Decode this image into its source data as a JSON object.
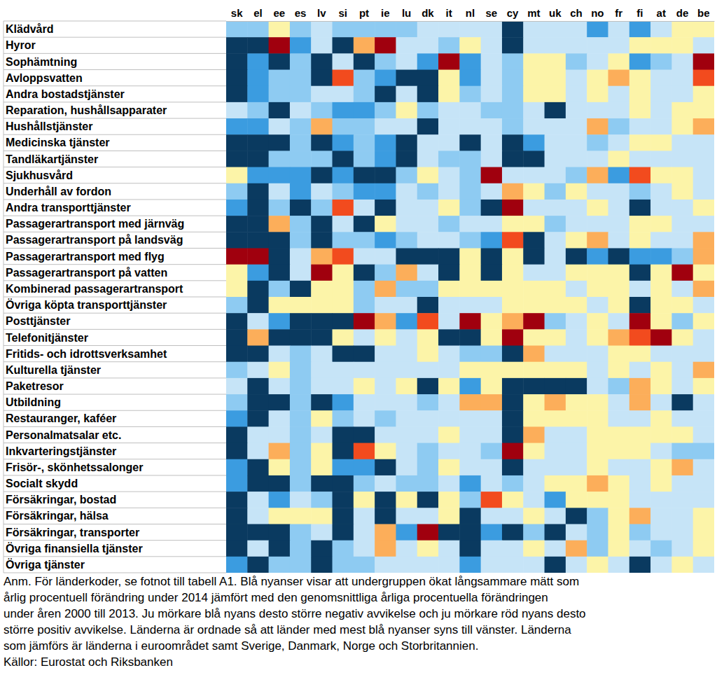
{
  "chart_data": {
    "type": "heatmap",
    "x": [
      "sk",
      "el",
      "ee",
      "es",
      "lv",
      "si",
      "pt",
      "ie",
      "lu",
      "dk",
      "it",
      "nl",
      "se",
      "cy",
      "mt",
      "uk",
      "ch",
      "no",
      "fr",
      "fi",
      "at",
      "de",
      "be"
    ],
    "y": [
      "Klädvård",
      "Hyror",
      "Sophämtning",
      "Avloppsvatten",
      "Andra bostadstjänster",
      "Reparation, hushållsapparater",
      "Hushållstjänster",
      "Medicinska tjänster",
      "Tandläkartjänster",
      "Sjukhusvård",
      "Underhåll av fordon",
      "Andra transporttjänster",
      "Passagerartransport med järnväg",
      "Passagerartransport på landsväg",
      "Passagerartransport med flyg",
      "Passagerartransport på vatten",
      "Kombinerad passagerartransport",
      "Övriga köpta transporttjänster",
      "Posttjänster",
      "Telefonitjänster",
      "Fritids- och idrottsverksamhet",
      "Kulturella tjänster",
      "Paketresor",
      "Utbildning",
      "Restauranger, kaféer",
      "Personalmatsalar etc.",
      "Inkvarteringstjänster",
      "Frisör-, skönhetssalonger",
      "Socialt skydd",
      "Försäkringar, bostad",
      "Försäkringar, hälsa",
      "Försäkringar, transporter",
      "Övriga finansiella tjänster",
      "Övriga tjänster"
    ],
    "cells": [
      [
        -2,
        -2,
        1,
        -2,
        -1,
        -2,
        -2,
        -2,
        -2,
        -1,
        -1,
        -1,
        -1,
        -4,
        -1,
        -1,
        -1,
        -3,
        -1,
        -3,
        -1,
        1,
        1
      ],
      [
        -4,
        -4,
        4,
        -3,
        -1,
        -4,
        2,
        4,
        -1,
        -1,
        -2,
        1,
        -1,
        -4,
        -1,
        -1,
        -1,
        -1,
        -1,
        1,
        1,
        1,
        -1
      ],
      [
        -4,
        -3,
        -4,
        -2,
        -4,
        -1,
        -4,
        -2,
        -1,
        -3,
        4,
        -3,
        -1,
        -2,
        1,
        1,
        -2,
        -1,
        1,
        -3,
        -2,
        -1,
        4
      ],
      [
        -4,
        -3,
        -2,
        -2,
        -4,
        3,
        -2,
        -3,
        -4,
        -4,
        1,
        -3,
        -1,
        -2,
        1,
        1,
        -1,
        1,
        2,
        1,
        -1,
        -1,
        3
      ],
      [
        -4,
        -3,
        -2,
        -2,
        -1,
        -1,
        -2,
        -4,
        -1,
        -4,
        1,
        -2,
        -1,
        -2,
        1,
        1,
        -1,
        1,
        -1,
        1,
        -1,
        -1,
        1
      ],
      [
        -1,
        -2,
        -4,
        -1,
        -2,
        -3,
        -3,
        -2,
        1,
        -2,
        -1,
        -1,
        -2,
        -2,
        -1,
        -4,
        -1,
        -1,
        -1,
        1,
        -1,
        1,
        1
      ],
      [
        -3,
        -3,
        -1,
        -2,
        2,
        -2,
        -2,
        -1,
        -1,
        -4,
        -1,
        -1,
        -1,
        -2,
        -1,
        -1,
        -1,
        2,
        -2,
        -1,
        -1,
        1,
        2
      ],
      [
        -4,
        -4,
        -4,
        -2,
        -4,
        -3,
        -2,
        -3,
        -4,
        -1,
        -1,
        -4,
        -1,
        -4,
        -3,
        -1,
        -1,
        -2,
        -1,
        1,
        1,
        -1,
        -1
      ],
      [
        -4,
        -4,
        -2,
        -2,
        -2,
        -4,
        -2,
        -3,
        -4,
        -1,
        -2,
        -2,
        -1,
        -4,
        -4,
        -1,
        -1,
        -1,
        1,
        -1,
        -1,
        -1,
        -1
      ],
      [
        1,
        -3,
        -3,
        -3,
        -4,
        -3,
        -4,
        -4,
        -2,
        1,
        -1,
        -2,
        4,
        -1,
        -1,
        -1,
        -2,
        2,
        -3,
        3,
        1,
        1,
        -1
      ],
      [
        -2,
        -4,
        -1,
        -3,
        -1,
        -2,
        -3,
        -3,
        -1,
        -2,
        -1,
        -2,
        -1,
        2,
        1,
        -2,
        1,
        -1,
        -1,
        -2,
        -1,
        1,
        -1
      ],
      [
        -3,
        -4,
        -2,
        -4,
        -2,
        3,
        -1,
        -4,
        -1,
        -1,
        1,
        -2,
        -4,
        4,
        -1,
        -1,
        -1,
        1,
        -1,
        -4,
        -1,
        -1,
        1
      ],
      [
        -4,
        -4,
        2,
        -2,
        -4,
        -1,
        -4,
        1,
        -1,
        -1,
        -2,
        -1,
        -1,
        1,
        1,
        -2,
        -1,
        -1,
        -1,
        1,
        1,
        -1,
        -1
      ],
      [
        -4,
        -4,
        -4,
        -2,
        -4,
        -2,
        -2,
        -3,
        -2,
        -1,
        -1,
        -2,
        -3,
        3,
        -4,
        -1,
        1,
        2,
        -1,
        1,
        -1,
        -1,
        2
      ],
      [
        4,
        4,
        -4,
        -1,
        2,
        3,
        -1,
        -1,
        -4,
        -4,
        -4,
        1,
        -4,
        1,
        -4,
        -1,
        -4,
        -3,
        -4,
        -3,
        -3,
        -2,
        2
      ],
      [
        1,
        -3,
        -4,
        -1,
        4,
        1,
        -4,
        -2,
        2,
        -1,
        -4,
        1,
        -4,
        1,
        -1,
        -1,
        1,
        1,
        1,
        -4,
        1,
        4,
        1
      ],
      [
        1,
        -4,
        -2,
        -4,
        1,
        1,
        -2,
        2,
        -2,
        -2,
        1,
        1,
        1,
        1,
        1,
        1,
        -1,
        1,
        1,
        -1,
        1,
        -1,
        2
      ],
      [
        -2,
        -4,
        1,
        1,
        1,
        1,
        -2,
        -1,
        -1,
        -4,
        -1,
        -1,
        -1,
        1,
        1,
        1,
        1,
        -1,
        1,
        -4,
        1,
        1,
        -1
      ],
      [
        -4,
        -1,
        -3,
        -4,
        -4,
        -4,
        4,
        2,
        -3,
        3,
        -1,
        4,
        1,
        2,
        4,
        -2,
        -1,
        1,
        -1,
        4,
        1,
        -2,
        1
      ],
      [
        -4,
        2,
        -4,
        -4,
        -4,
        1,
        -1,
        1,
        -1,
        1,
        -4,
        -4,
        1,
        4,
        1,
        1,
        -1,
        1,
        2,
        3,
        4,
        1,
        -1
      ],
      [
        -4,
        -4,
        -1,
        -2,
        -1,
        -4,
        -4,
        -1,
        -1,
        1,
        -1,
        -2,
        -2,
        -4,
        2,
        -1,
        -1,
        -1,
        1,
        1,
        -1,
        -1,
        -1
      ],
      [
        -2,
        -1,
        1,
        -2,
        -1,
        -1,
        -1,
        -1,
        -1,
        -1,
        -1,
        1,
        1,
        1,
        1,
        1,
        1,
        -1,
        1,
        -1,
        1,
        -1,
        2
      ],
      [
        -1,
        -4,
        -1,
        -2,
        -1,
        -1,
        1,
        -1,
        1,
        -4,
        1,
        -3,
        1,
        -4,
        -4,
        -4,
        -4,
        -1,
        -2,
        2,
        1,
        -1,
        1
      ],
      [
        -2,
        -4,
        -4,
        -2,
        -4,
        -3,
        -1,
        -1,
        -1,
        -2,
        -1,
        2,
        2,
        -4,
        1,
        2,
        1,
        1,
        -1,
        2,
        -1,
        -4,
        -1
      ],
      [
        -3,
        -4,
        -1,
        -2,
        1,
        -2,
        -1,
        -2,
        -1,
        -1,
        -1,
        -1,
        -1,
        -4,
        1,
        1,
        1,
        1,
        -1,
        -1,
        1,
        -1,
        -1
      ],
      [
        -4,
        -1,
        -1,
        -2,
        -1,
        -4,
        -4,
        -1,
        -1,
        -1,
        1,
        -1,
        -1,
        -4,
        2,
        -1,
        -1,
        1,
        1,
        1,
        1,
        1,
        -1
      ],
      [
        -4,
        -1,
        2,
        -2,
        1,
        -4,
        3,
        1,
        -1,
        -2,
        -1,
        -1,
        -2,
        4,
        1,
        -1,
        -1,
        1,
        1,
        1,
        -1,
        -2,
        -2
      ],
      [
        -3,
        -4,
        1,
        -2,
        1,
        -3,
        -3,
        -4,
        -1,
        -2,
        1,
        -1,
        -1,
        -4,
        -1,
        -1,
        -1,
        1,
        -1,
        -1,
        1,
        2,
        -1
      ],
      [
        -3,
        -4,
        -4,
        -2,
        -4,
        -4,
        -2,
        -1,
        -2,
        -2,
        -1,
        -3,
        -1,
        -2,
        -1,
        1,
        1,
        2,
        1,
        -1,
        1,
        -1,
        -1
      ],
      [
        -4,
        -1,
        -3,
        -1,
        -2,
        -4,
        1,
        -4,
        1,
        -4,
        1,
        -2,
        3,
        1,
        -1,
        -3,
        1,
        1,
        1,
        -1,
        -1,
        -1,
        -1
      ],
      [
        -4,
        -1,
        1,
        1,
        1,
        -4,
        -1,
        -4,
        -1,
        -1,
        1,
        -4,
        -1,
        -1,
        1,
        -1,
        -4,
        -2,
        1,
        2,
        -1,
        -1,
        1
      ],
      [
        -4,
        -4,
        -4,
        -2,
        -1,
        -4,
        -1,
        2,
        -3,
        4,
        -4,
        -4,
        -3,
        -4,
        -2,
        -4,
        -1,
        -2,
        1,
        -2,
        -1,
        -1,
        1
      ],
      [
        -4,
        -1,
        -4,
        -2,
        -4,
        -2,
        -1,
        2,
        -1,
        1,
        -1,
        -4,
        -1,
        -1,
        1,
        -1,
        2,
        -2,
        1,
        -1,
        -2,
        -1,
        1
      ],
      [
        -3,
        -4,
        -2,
        -2,
        -4,
        -2,
        -2,
        -1,
        -1,
        -1,
        -1,
        -3,
        -1,
        -1,
        -1,
        -4,
        -1,
        1,
        -1,
        -4,
        -1,
        1,
        -1
      ]
    ],
    "notes": [
      "Anm. För länderkoder, se fotnot till tabell A1. Blå nyanser visar att undergruppen ökat långsammare mätt som",
      "årlig procentuell förändring under 2014 jämfört med den genomsnittliga årliga procentuella förändringen",
      "under åren 2000 till 2013. Ju mörkare blå nyans desto större negativ avvikelse och ju mörkare röd nyans desto",
      "större positiv avvikelse. Länderna är ordnade så att länder med mest blå nyanser syns till vänster. Länderna",
      "som jämförs är länderna i euroområdet samt Sverige, Danmark, Norge och Storbritannien."
    ],
    "source": "Källor: Eurostat och Riksbanken"
  }
}
